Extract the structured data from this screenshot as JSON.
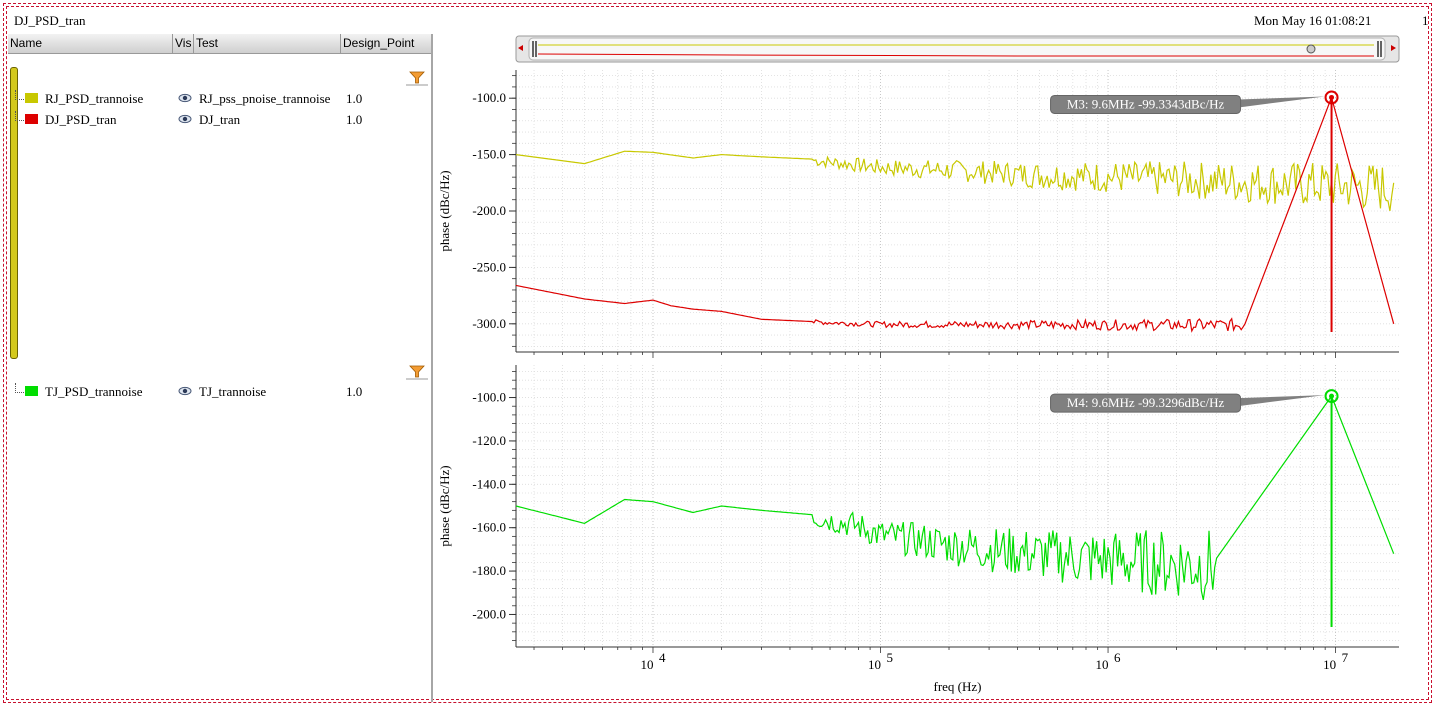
{
  "window": {
    "title": "DJ_PSD_tran",
    "timestamp": "Mon May 16 01:08:21",
    "edge_text": "1"
  },
  "table": {
    "headers": [
      "Name",
      "Vis",
      "Test",
      "Design_Point"
    ],
    "groups": [
      {
        "rows": [
          {
            "name": "RJ_PSD_trannoise",
            "color": "#c8c800",
            "test": "RJ_pss_pnoise_trannoise",
            "design_point": "1.0"
          },
          {
            "name": "DJ_PSD_tran",
            "color": "#dd0000",
            "test": "DJ_tran",
            "design_point": "1.0"
          }
        ]
      },
      {
        "rows": [
          {
            "name": "TJ_PSD_trannoise",
            "color": "#00dd00",
            "test": "TJ_trannoise",
            "design_point": "1.0"
          }
        ]
      }
    ],
    "icons": {
      "visibility": "eye-icon",
      "filter": "funnel-icon"
    }
  },
  "chart_data": [
    {
      "type": "line",
      "xlabel": "freq (Hz)",
      "ylabel": "phase (dBc/Hz)",
      "x_scale": "log",
      "xlim": [
        2500,
        19000000
      ],
      "ylim": [
        -325,
        -75
      ],
      "yticks": [
        "-100.0",
        "-150.0",
        "-200.0",
        "-250.0",
        "-300.0"
      ],
      "xticks": [
        "10^4",
        "10^5",
        "10^6",
        "10^7"
      ],
      "grid": true,
      "series": [
        {
          "name": "RJ_PSD_trannoise",
          "color": "#c8c800",
          "x": [
            2500,
            5000,
            7500,
            10000,
            15000,
            20000,
            30000,
            50000,
            80000,
            100000,
            200000,
            500000,
            1000000,
            3000000,
            9600000,
            18000000
          ],
          "y": [
            -150,
            -158,
            -147,
            -148,
            -153,
            -150,
            -152,
            -154,
            -158,
            -160,
            -162,
            -166,
            -167,
            -170,
            -173,
            -175
          ]
        },
        {
          "name": "DJ_PSD_tran",
          "color": "#dd0000",
          "x": [
            2500,
            5000,
            7500,
            10000,
            12000,
            15000,
            20000,
            30000,
            50000,
            100000,
            300000,
            1000000,
            4000000,
            9600000,
            18000000
          ],
          "y": [
            -266,
            -278,
            -282,
            -279,
            -284,
            -287,
            -289,
            -296,
            -298,
            -300,
            -300,
            -300,
            -300,
            -99.3343,
            -300
          ]
        }
      ],
      "marker": {
        "label": "M3: 9.6MHz -99.3343dBc/Hz",
        "x": 9600000,
        "y": -99.3343,
        "color": "#dd0000"
      }
    },
    {
      "type": "line",
      "xlabel": "freq (Hz)",
      "ylabel": "phase (dBc/Hz)",
      "x_scale": "log",
      "xlim": [
        2500,
        19000000
      ],
      "ylim": [
        -215,
        -85
      ],
      "yticks": [
        "-100.0",
        "-120.0",
        "-140.0",
        "-160.0",
        "-180.0",
        "-200.0"
      ],
      "xticks": [
        "10^4",
        "10^5",
        "10^6",
        "10^7"
      ],
      "grid": true,
      "series": [
        {
          "name": "TJ_PSD_trannoise",
          "color": "#00dd00",
          "x": [
            2500,
            5000,
            7500,
            10000,
            15000,
            20000,
            30000,
            50000,
            80000,
            100000,
            200000,
            500000,
            1000000,
            3000000,
            9600000,
            18000000
          ],
          "y": [
            -150,
            -158,
            -147,
            -148,
            -153,
            -150,
            -152,
            -154,
            -158,
            -162,
            -166,
            -170,
            -172,
            -174,
            -99.3296,
            -172
          ]
        }
      ],
      "marker": {
        "label": "M4: 9.6MHz -99.3296dBc/Hz",
        "x": 9600000,
        "y": -99.3296,
        "color": "#00dd00"
      }
    }
  ]
}
